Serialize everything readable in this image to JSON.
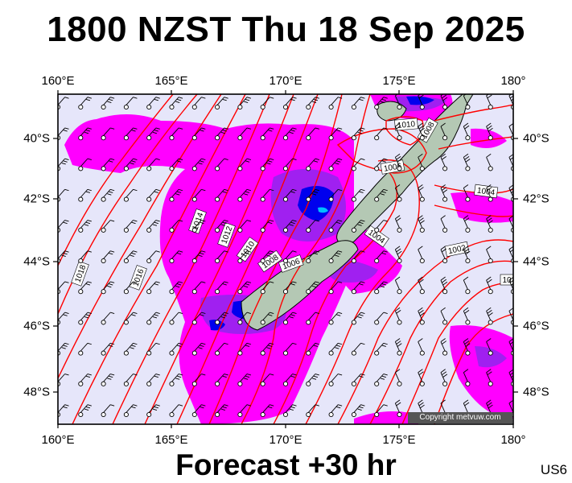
{
  "title": "1800 NZST Thu 18 Sep 2025",
  "footer": "Forecast +30 hr",
  "model_code": "US6",
  "copyright": "Copyright metvuw.com",
  "lon_labels": [
    "160°E",
    "165°E",
    "170°E",
    "175°E",
    "180°"
  ],
  "lat_labels": [
    "40°S",
    "42°S",
    "44°S",
    "46°S",
    "48°S"
  ],
  "isobar_labels": [
    "1018",
    "1016",
    "1014",
    "1012",
    "1010",
    "1008",
    "1006",
    "1004",
    "1004",
    "1002",
    "1010",
    "1008",
    "1006",
    "1004",
    "10"
  ],
  "colors": {
    "ocean": "#e6e6fa",
    "rain_light": "#ff00ff",
    "rain_mid": "#a020f0",
    "rain_heavy": "#0000ee",
    "rain_extreme": "#00bfff",
    "isobar": "#ff0000",
    "land": "#b4c8b4"
  }
}
